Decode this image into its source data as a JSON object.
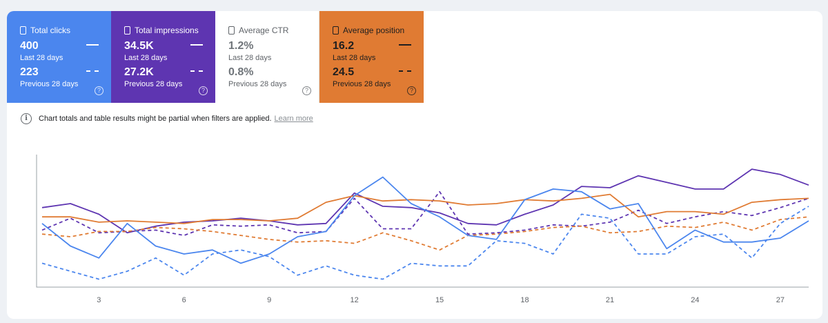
{
  "cards": [
    {
      "label": "Total clicks",
      "value": "400",
      "period": "Last 28 days",
      "prev_value": "223",
      "prev_period": "Previous 28 days",
      "color": "#4b86ee"
    },
    {
      "label": "Total impressions",
      "value": "34.5K",
      "period": "Last 28 days",
      "prev_value": "27.2K",
      "prev_period": "Previous 28 days",
      "color": "#5e35b1"
    },
    {
      "label": "Average CTR",
      "value": "1.2%",
      "period": "Last 28 days",
      "prev_value": "0.8%",
      "prev_period": "Previous 28 days",
      "color": "#ffffff"
    },
    {
      "label": "Average position",
      "value": "16.2",
      "period": "Last 28 days",
      "prev_value": "24.5",
      "prev_period": "Previous 28 days",
      "color": "#e07b33"
    }
  ],
  "help_glyph": "?",
  "info_glyph": "i",
  "notice": {
    "text": "Chart totals and table results might be partial when filters are applied.",
    "link": "Learn more"
  },
  "chart_data": {
    "type": "line",
    "x": [
      1,
      2,
      3,
      4,
      5,
      6,
      7,
      8,
      9,
      10,
      11,
      12,
      13,
      14,
      15,
      16,
      17,
      18,
      19,
      20,
      21,
      22,
      23,
      24,
      25,
      26,
      27,
      28
    ],
    "xticks": [
      3,
      6,
      9,
      12,
      15,
      18,
      21,
      24,
      27
    ],
    "grid": false,
    "series": [
      {
        "color": "#5e35b1",
        "style": "solid",
        "values": [
          6.0,
          6.3,
          5.5,
          4.1,
          4.6,
          4.9,
          5.0,
          5.2,
          5.0,
          4.7,
          4.8,
          7.1,
          6.1,
          6.0,
          5.6,
          4.8,
          4.7,
          5.5,
          6.2,
          7.6,
          7.5,
          8.4,
          7.9,
          7.4,
          7.4,
          8.9,
          8.5,
          7.7
        ]
      },
      {
        "color": "#5e35b1",
        "style": "dashed",
        "values": [
          4.3,
          5.2,
          4.1,
          4.2,
          4.3,
          3.9,
          4.7,
          4.6,
          4.7,
          4.1,
          4.2,
          6.7,
          4.4,
          4.4,
          7.2,
          4.0,
          4.1,
          4.3,
          4.7,
          4.6,
          4.9,
          5.8,
          4.8,
          5.3,
          5.7,
          5.4,
          6.0,
          6.7
        ]
      },
      {
        "color": "#e07b33",
        "style": "solid",
        "values": [
          5.3,
          5.3,
          4.9,
          5.0,
          4.9,
          4.8,
          5.1,
          5.1,
          5.0,
          5.2,
          6.4,
          6.9,
          6.5,
          6.6,
          6.5,
          6.2,
          6.3,
          6.6,
          6.5,
          6.7,
          7.0,
          5.3,
          5.7,
          5.7,
          5.5,
          6.4,
          6.6,
          6.7
        ]
      },
      {
        "color": "#e07b33",
        "style": "dashed",
        "values": [
          4.0,
          3.8,
          4.2,
          4.2,
          4.5,
          4.4,
          4.2,
          3.9,
          3.6,
          3.4,
          3.5,
          3.3,
          4.1,
          3.5,
          2.8,
          3.9,
          4.0,
          4.2,
          4.5,
          4.6,
          4.1,
          4.2,
          4.6,
          4.5,
          4.9,
          4.3,
          5.1,
          5.3
        ]
      },
      {
        "color": "#4b86ee",
        "style": "solid",
        "values": [
          4.8,
          3.1,
          2.2,
          4.8,
          3.1,
          2.5,
          2.8,
          1.8,
          2.5,
          3.8,
          4.2,
          6.9,
          8.3,
          6.3,
          5.3,
          3.9,
          3.6,
          6.6,
          7.4,
          7.2,
          5.9,
          6.3,
          2.9,
          4.3,
          3.4,
          3.4,
          3.7,
          5.0
        ]
      },
      {
        "color": "#4b86ee",
        "style": "dashed",
        "values": [
          1.8,
          1.2,
          0.6,
          1.2,
          2.2,
          0.9,
          2.5,
          2.8,
          2.3,
          0.9,
          1.6,
          0.9,
          0.6,
          1.8,
          1.6,
          1.6,
          3.5,
          3.3,
          2.5,
          5.5,
          5.2,
          2.5,
          2.5,
          3.8,
          4.0,
          2.2,
          4.8,
          6.1
        ]
      }
    ]
  }
}
